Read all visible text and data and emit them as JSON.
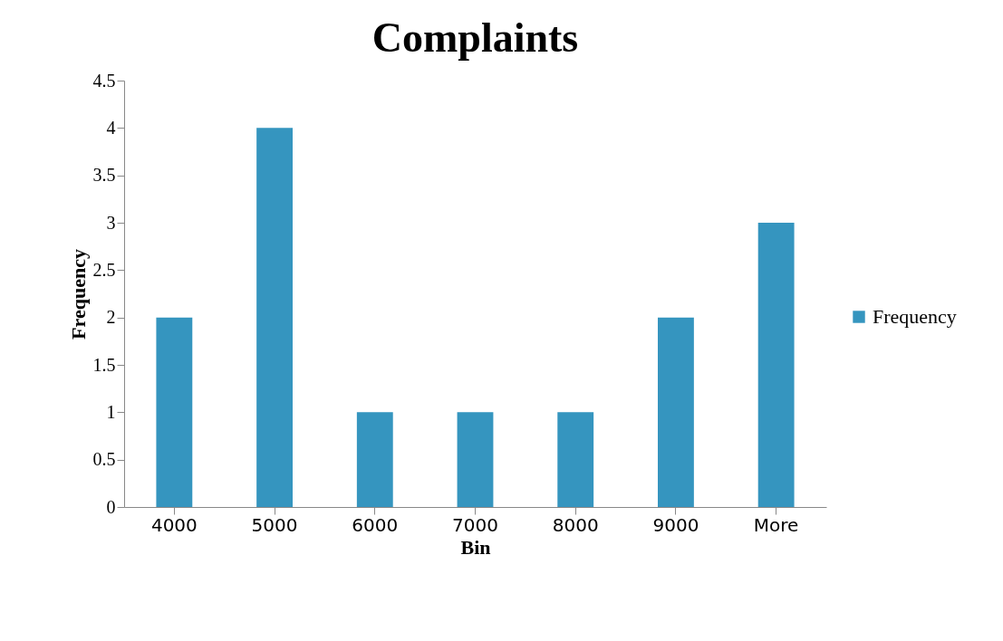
{
  "chart_data": {
    "type": "bar",
    "title": "Complaints",
    "xlabel": "Bin",
    "ylabel": "Frequency",
    "categories": [
      "4000",
      "5000",
      "6000",
      "7000",
      "8000",
      "9000",
      "More"
    ],
    "series": [
      {
        "name": "Frequency",
        "color": "#3595bf",
        "values": [
          2,
          4,
          1,
          1,
          1,
          2,
          3
        ]
      }
    ],
    "ylim": [
      0,
      4.5
    ],
    "yticks": [
      0,
      0.5,
      1,
      1.5,
      2,
      2.5,
      3,
      3.5,
      4,
      4.5
    ],
    "grid": false,
    "legend": "right"
  }
}
